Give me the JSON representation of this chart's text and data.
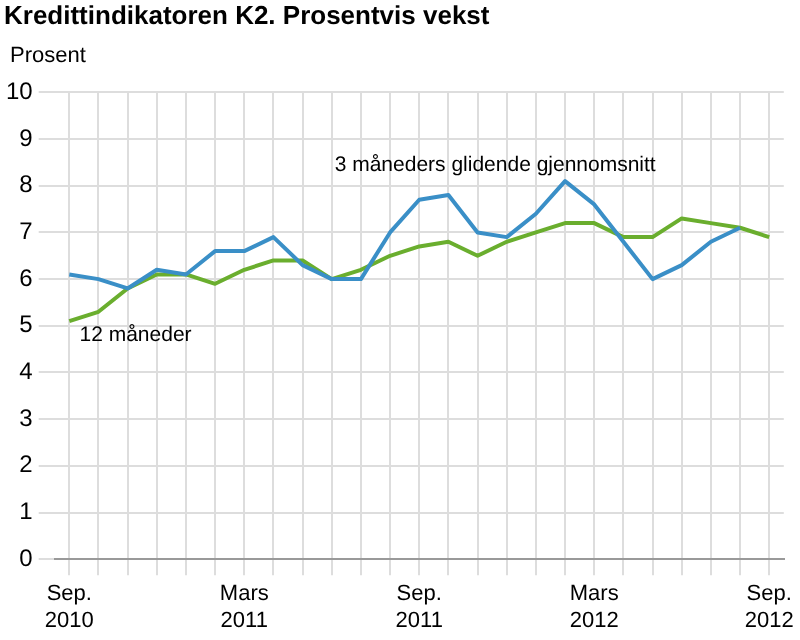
{
  "chart_data": {
    "type": "line",
    "title": "Kredittindikatoren K2. Prosentvis vekst",
    "ylabel": "Prosent",
    "categories": [
      "Sep. 2010",
      null,
      null,
      null,
      null,
      null,
      "Mars 2011",
      null,
      null,
      null,
      null,
      null,
      "Sep. 2011",
      null,
      null,
      null,
      null,
      null,
      "Mars 2012",
      null,
      null,
      null,
      null,
      null,
      "Sep. 2012"
    ],
    "series": [
      {
        "color": "#3a8fc7",
        "values": [
          6.1,
          6.0,
          5.8,
          6.2,
          6.1,
          6.6,
          6.6,
          6.9,
          6.3,
          6.0,
          6.0,
          7.0,
          7.7,
          7.8,
          7.0,
          6.9,
          7.4,
          8.1,
          7.6,
          6.8,
          6.0,
          6.3,
          6.8,
          7.1,
          null
        ]
      },
      {
        "color": "#6aae2e",
        "values": [
          5.1,
          5.3,
          5.8,
          6.1,
          6.1,
          5.9,
          6.2,
          6.4,
          6.4,
          6.0,
          6.2,
          6.5,
          6.7,
          6.8,
          6.5,
          6.8,
          7.0,
          7.2,
          7.2,
          6.9,
          6.9,
          7.3,
          7.2,
          7.1,
          6.9
        ]
      }
    ],
    "annotations": [
      "3 måneders glidende gjennomsnitt",
      "12 måneder"
    ],
    "ylim": [
      0,
      10
    ],
    "yticks": [
      0,
      1,
      2,
      3,
      4,
      5,
      6,
      7,
      8,
      9,
      10
    ],
    "grid": true,
    "legend": false,
    "marker": "none",
    "line_style": "solid"
  }
}
